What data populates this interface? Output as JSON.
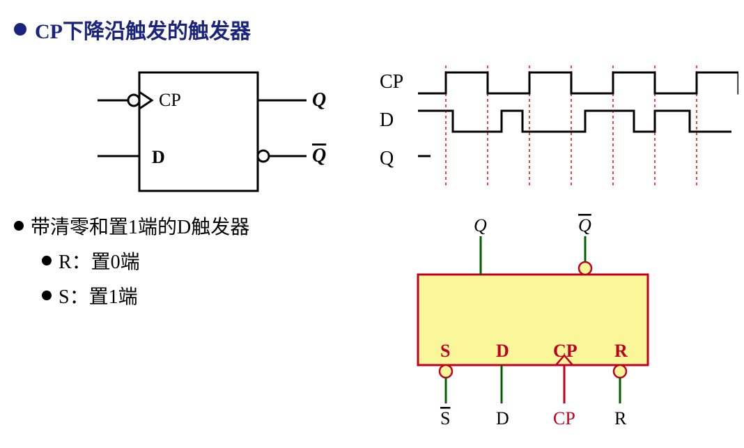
{
  "section1": {
    "title_prefix": "CP",
    "title_rest": "下降沿触发的触发器",
    "title_color": "#1a237e",
    "title_fontsize": 30,
    "bullet_color": "#1a237e",
    "diagram": {
      "box_stroke": "#000000",
      "box_stroke_width": 3,
      "labels": {
        "cp": "CP",
        "d": "D",
        "q": "Q",
        "qbar": "Q"
      },
      "label_fontsize": 26,
      "label_font_italic": true,
      "line_stroke": "#000000",
      "line_width": 3,
      "bubble_fill": "#ffffff"
    },
    "timing": {
      "signals": [
        {
          "name": "CP",
          "label": "CP",
          "edges": [
            0,
            1,
            0,
            1,
            0,
            1,
            0,
            1,
            0
          ],
          "seg": [
            40,
            60,
            60,
            60,
            60,
            60,
            60,
            60,
            40
          ]
        },
        {
          "name": "D",
          "label": "D",
          "edges": [
            1,
            0,
            1,
            0,
            0,
            1,
            0,
            1,
            0
          ],
          "seg": [
            50,
            70,
            30,
            30,
            60,
            70,
            30,
            50,
            60
          ]
        },
        {
          "name": "Q",
          "label": "Q",
          "dash": true
        }
      ],
      "label_fontsize": 28,
      "stroke": "#000000",
      "stroke_width": 3,
      "guide_color": "#ff0000",
      "guide_dash": "4,4",
      "guides_x": [
        100,
        160,
        220,
        280,
        340,
        400,
        460
      ]
    }
  },
  "section2": {
    "title": "带清零和置1端的D触发器",
    "bullets": [
      {
        "label": "R：置0端"
      },
      {
        "label": "S：置1端"
      }
    ],
    "title_fontsize": 28,
    "diagram": {
      "box_fill": "#f9f79a",
      "box_stroke": "#c00020",
      "box_stroke_width": 3,
      "top_labels": {
        "q": "Q",
        "qbar": "Q"
      },
      "inside_labels": [
        {
          "t": "S",
          "c": "#c00020"
        },
        {
          "t": "D",
          "c": "#c00020"
        },
        {
          "t": "CP",
          "c": "#c00020"
        },
        {
          "t": "R",
          "c": "#c00020"
        }
      ],
      "bottom_labels": [
        {
          "t": "S",
          "bar": true,
          "c": "#000000"
        },
        {
          "t": "D",
          "bar": false,
          "c": "#000000"
        },
        {
          "t": "CP",
          "bar": false,
          "c": "#c00020"
        },
        {
          "t": "R",
          "bar": false,
          "c": "#000000"
        }
      ],
      "bubble_fill": "#f9f79a",
      "line_color_default": "#006000",
      "line_color_cp": "#c00020",
      "label_fontsize": 26
    }
  }
}
